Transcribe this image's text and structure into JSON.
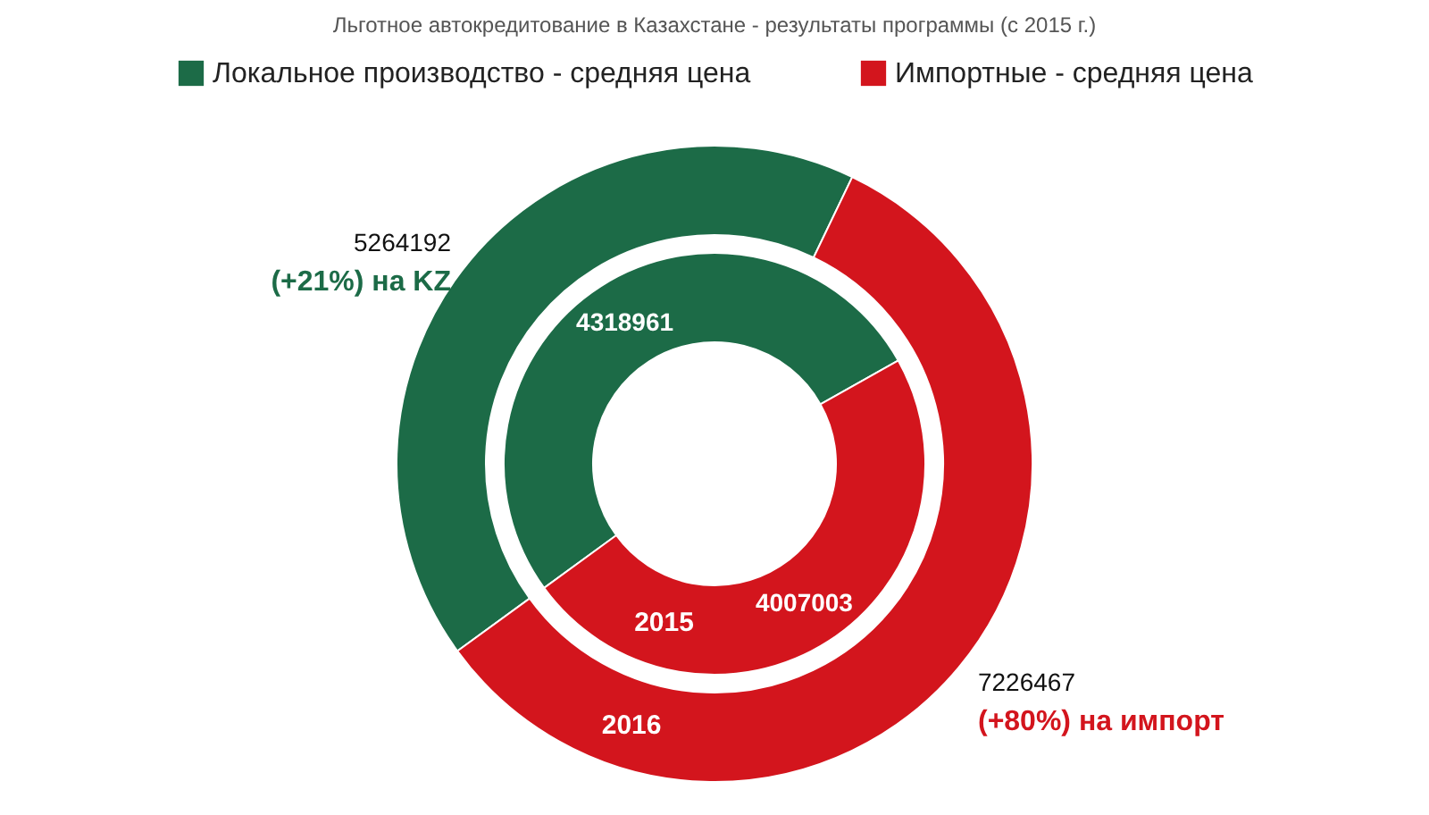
{
  "chart_data": {
    "type": "donut",
    "title": "Льготное автокредитование в Казахстане - результаты программы (с 2015 г.)",
    "categories": [
      "Локальное производство - средняя цена",
      "Импортные - средняя цена"
    ],
    "colors": [
      "#1c6b47",
      "#d3151d"
    ],
    "series": [
      {
        "name": "2015",
        "values": [
          4318961,
          4007003
        ]
      },
      {
        "name": "2016",
        "values": [
          5264192,
          7226467
        ]
      }
    ],
    "data_labels": true,
    "annotations": [
      "(+21%) на KZ",
      "(+80%) на импорт"
    ],
    "legend": "top"
  }
}
